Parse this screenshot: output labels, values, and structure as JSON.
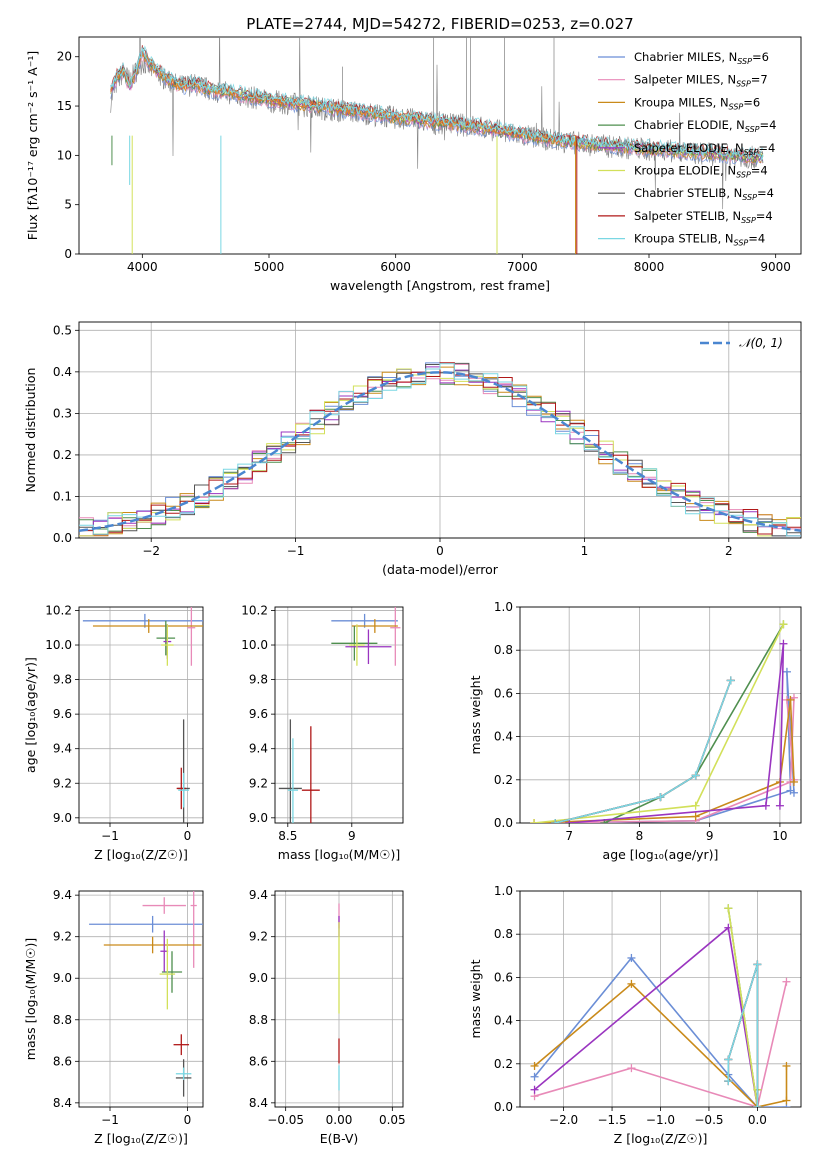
{
  "figure_title": "PLATE=2744, MJD=54272, FIBERID=0253, z=0.027",
  "colors": {
    "Chabrier MILES": "#6b8ed6",
    "Salpeter MILES": "#e88ab8",
    "Kroupa MILES": "#c98a1a",
    "Chabrier ELODIE": "#4f8f4f",
    "Salpeter ELODIE": "#9a35c0",
    "Kroupa ELODIE": "#d2e05a",
    "Chabrier STELIB": "#555555",
    "Salpeter STELIB": "#b01818",
    "Kroupa STELIB": "#7ad7e3",
    "data": "#808080",
    "model_orange": "#e07b2e",
    "normal": "#4a86d0",
    "grid": "#b0b0b0"
  },
  "chart_data": [
    {
      "id": "spectrum",
      "type": "line",
      "title": "PLATE=2744, MJD=54272, FIBERID=0253, z=0.027",
      "xlabel": "wavelength [Angstrom, rest frame]",
      "ylabel": "Flux [fλ10⁻¹⁷ erg cm⁻² s⁻¹ A⁻¹]",
      "xlim": [
        3500,
        9200
      ],
      "ylim": [
        0,
        22
      ],
      "xticks": [
        4000,
        5000,
        6000,
        7000,
        8000,
        9000
      ],
      "yticks": [
        0,
        5,
        10,
        15,
        20
      ],
      "grid": false,
      "legend_position": "top-right",
      "legend": [
        {
          "label": "Chabrier MILES, N_SSP=6",
          "main": "Chabrier MILES, N",
          "sub": "SSP",
          "tail": "=6"
        },
        {
          "label": "Salpeter MILES, N_SSP=7",
          "main": "Salpeter MILES, N",
          "sub": "SSP",
          "tail": "=7"
        },
        {
          "label": "Kroupa MILES, N_SSP=6",
          "main": "Kroupa MILES, N",
          "sub": "SSP",
          "tail": "=6"
        },
        {
          "label": "Chabrier ELODIE, N_SSP=4",
          "main": "Chabrier ELODIE, N",
          "sub": "SSP",
          "tail": "=4"
        },
        {
          "label": "Salpeter ELODIE, N_SSP=4",
          "main": "Salpeter ELODIE, N",
          "sub": "SSP",
          "tail": "=4"
        },
        {
          "label": "Kroupa ELODIE, N_SSP=4",
          "main": "Kroupa ELODIE, N",
          "sub": "SSP",
          "tail": "=4"
        },
        {
          "label": "Chabrier STELIB, N_SSP=4",
          "main": "Chabrier STELIB, N",
          "sub": "SSP",
          "tail": "=4"
        },
        {
          "label": "Salpeter STELIB, N_SSP=4",
          "main": "Salpeter STELIB, N",
          "sub": "SSP",
          "tail": "=4"
        },
        {
          "label": "Kroupa STELIB, N_SSP=4",
          "main": "Kroupa STELIB, N",
          "sub": "SSP",
          "tail": "=4"
        }
      ],
      "data_curve": {
        "x": [
          3750,
          3800,
          3850,
          3900,
          3950,
          4000,
          4050,
          4100,
          4150,
          4200,
          4300,
          4400,
          4500,
          4600,
          4700,
          4800,
          4900,
          5000,
          5200,
          5400,
          5600,
          5800,
          6000,
          6200,
          6400,
          6600,
          6800,
          7000,
          7200,
          7400,
          7600,
          7800,
          8000,
          8200,
          8400,
          8600,
          8800,
          8900
        ],
        "y": [
          15.5,
          17.5,
          18.5,
          17.5,
          18.5,
          19.5,
          19.0,
          18.5,
          18.0,
          17.5,
          17.0,
          17.2,
          16.8,
          16.5,
          16.3,
          16.0,
          15.8,
          15.5,
          15.2,
          14.8,
          14.5,
          14.2,
          13.8,
          13.5,
          13.2,
          13.0,
          12.5,
          12.0,
          11.6,
          11.3,
          11.0,
          10.8,
          10.6,
          10.4,
          10.2,
          10.0,
          9.8,
          9.7
        ]
      },
      "model_curve": {
        "x": [
          3750,
          3800,
          3850,
          3900,
          3950,
          4000,
          4050,
          4100,
          4200,
          4300,
          4400,
          4500,
          4600,
          4700,
          4800,
          5000,
          5200,
          5400,
          5600,
          5800,
          6000,
          6200,
          6400,
          6600,
          6800,
          7000,
          7200,
          7400,
          7600,
          7800,
          8000,
          8200,
          8400,
          8600,
          8800,
          8900
        ],
        "y": [
          16.5,
          18.0,
          18.5,
          17.0,
          18.5,
          20.5,
          19.5,
          18.8,
          17.8,
          17.0,
          17.3,
          16.8,
          16.5,
          16.4,
          16.1,
          15.7,
          15.3,
          15.0,
          14.6,
          14.3,
          13.9,
          13.6,
          13.3,
          13.0,
          12.6,
          12.1,
          11.7,
          11.4,
          11.1,
          10.9,
          10.7,
          10.5,
          10.3,
          10.1,
          9.9,
          9.8
        ]
      }
    },
    {
      "id": "residuals",
      "type": "histogram",
      "xlabel": "(data-model)/error",
      "ylabel": "Normed distribution",
      "xlim": [
        -2.5,
        2.5
      ],
      "ylim": [
        0,
        0.52
      ],
      "xticks": [
        -2,
        -1,
        0,
        1,
        2
      ],
      "yticks": [
        0.0,
        0.1,
        0.2,
        0.3,
        0.4,
        0.5
      ],
      "grid": true,
      "legend_position": "top-right",
      "legend": [
        {
          "label": "𝒩(0, 1)"
        }
      ],
      "bin_width": 0.1,
      "normal": {
        "mean": 0,
        "sigma": 1
      }
    },
    {
      "id": "age-metallicity",
      "type": "scatter",
      "xlabel": "Z [log₁₀(Z/Z☉)]",
      "ylabel": "age  [log₁₀(age/yr)]",
      "xlim": [
        -1.4,
        0.2
      ],
      "ylim": [
        8.97,
        10.22
      ],
      "xticks": [
        -1,
        0
      ],
      "yticks": [
        9.0,
        9.2,
        9.4,
        9.6,
        9.8,
        10.0,
        10.2
      ],
      "grid": true,
      "points": [
        {
          "series": "Chabrier MILES",
          "x": -0.55,
          "y": 10.14,
          "xerr": 0.8,
          "yerr": 0.04
        },
        {
          "series": "Salpeter MILES",
          "x": 0.05,
          "y": 10.1,
          "xerr": 0.05,
          "yerr": 0.22
        },
        {
          "series": "Kroupa MILES",
          "x": -0.5,
          "y": 10.11,
          "xerr": 0.72,
          "yerr": 0.04
        },
        {
          "series": "Chabrier ELODIE",
          "x": -0.28,
          "y": 10.04,
          "xerr": 0.12,
          "yerr": 0.1
        },
        {
          "series": "Salpeter ELODIE",
          "x": -0.26,
          "y": 10.02,
          "xerr": 0.05,
          "yerr": 0.1
        },
        {
          "series": "Kroupa ELODIE",
          "x": -0.26,
          "y": 10.0,
          "xerr": 0.08,
          "yerr": 0.12
        },
        {
          "series": "Chabrier STELIB",
          "x": -0.05,
          "y": 9.17,
          "xerr": 0.08,
          "yerr": 0.4
        },
        {
          "series": "Salpeter STELIB",
          "x": -0.08,
          "y": 9.17,
          "xerr": 0.06,
          "yerr": 0.12
        },
        {
          "series": "Kroupa STELIB",
          "x": -0.05,
          "y": 9.16,
          "xerr": 0.07,
          "yerr": 0.1
        }
      ]
    },
    {
      "id": "age-mass",
      "type": "scatter",
      "xlabel": "mass [log₁₀(M/M☉)]",
      "ylabel": "",
      "xlim": [
        8.4,
        9.4
      ],
      "ylim": [
        8.97,
        10.22
      ],
      "xticks": [
        8.5,
        9.0
      ],
      "yticks": [
        9.0,
        9.2,
        9.4,
        9.6,
        9.8,
        10.0,
        10.2
      ],
      "grid": true,
      "points": [
        {
          "series": "Chabrier MILES",
          "x": 9.1,
          "y": 10.14,
          "xerr": 0.26,
          "yerr": 0.04
        },
        {
          "series": "Salpeter MILES",
          "x": 9.34,
          "y": 10.1,
          "xerr": 0.04,
          "yerr": 0.22
        },
        {
          "series": "Kroupa MILES",
          "x": 9.18,
          "y": 10.11,
          "xerr": 0.18,
          "yerr": 0.04
        },
        {
          "series": "Chabrier ELODIE",
          "x": 9.02,
          "y": 10.01,
          "xerr": 0.18,
          "yerr": 0.1
        },
        {
          "series": "Salpeter ELODIE",
          "x": 9.13,
          "y": 9.99,
          "xerr": 0.18,
          "yerr": 0.1
        },
        {
          "series": "Kroupa ELODIE",
          "x": 9.04,
          "y": 10.0,
          "xerr": 0.06,
          "yerr": 0.12
        },
        {
          "series": "Chabrier STELIB",
          "x": 8.52,
          "y": 9.17,
          "xerr": 0.09,
          "yerr": 0.4
        },
        {
          "series": "Salpeter STELIB",
          "x": 8.68,
          "y": 9.16,
          "xerr": 0.07,
          "yerr": 0.37
        },
        {
          "series": "Kroupa STELIB",
          "x": 8.54,
          "y": 9.16,
          "xerr": 0.04,
          "yerr": 0.3
        }
      ]
    },
    {
      "id": "weight-age",
      "type": "line",
      "xlabel": "age  [log₁₀(age/yr)]",
      "ylabel": "mass weight",
      "xlim": [
        6.3,
        10.3
      ],
      "ylim": [
        0,
        1
      ],
      "xticks": [
        7,
        8,
        9,
        10
      ],
      "yticks": [
        0.0,
        0.2,
        0.4,
        0.6,
        0.8,
        1.0
      ],
      "grid": true,
      "series": [
        {
          "name": "Chabrier MILES",
          "x": [
            7.0,
            8.8,
            10.15,
            10.1,
            10.2
          ],
          "y": [
            0.0,
            0.01,
            0.15,
            0.7,
            0.14
          ]
        },
        {
          "name": "Salpeter MILES",
          "x": [
            6.5,
            8.8,
            10.15,
            10.2,
            10.1,
            10.2
          ],
          "y": [
            0.0,
            0.01,
            0.19,
            0.58,
            0.57,
            0.2
          ]
        },
        {
          "name": "Kroupa MILES",
          "x": [
            6.5,
            8.8,
            10.0,
            10.15,
            10.2
          ],
          "y": [
            0.0,
            0.03,
            0.19,
            0.57,
            0.19
          ]
        },
        {
          "name": "Chabrier ELODIE",
          "x": [
            7.5,
            8.3,
            8.8,
            10.05
          ],
          "y": [
            0.0,
            0.12,
            0.22,
            0.92
          ]
        },
        {
          "name": "Salpeter ELODIE",
          "x": [
            7.0,
            9.8,
            10.05,
            10.0
          ],
          "y": [
            0.0,
            0.08,
            0.83,
            0.08
          ]
        },
        {
          "name": "Kroupa ELODIE",
          "x": [
            6.5,
            8.8,
            10.05
          ],
          "y": [
            0.0,
            0.08,
            0.92
          ]
        },
        {
          "name": "Chabrier STELIB",
          "x": [
            6.8,
            8.3,
            8.8,
            9.3
          ],
          "y": [
            0.0,
            0.12,
            0.22,
            0.66
          ]
        },
        {
          "name": "Salpeter STELIB",
          "x": [
            6.8,
            8.3,
            8.8,
            9.3
          ],
          "y": [
            0.0,
            0.12,
            0.22,
            0.66
          ]
        },
        {
          "name": "Kroupa STELIB",
          "x": [
            6.8,
            8.3,
            8.8,
            9.3
          ],
          "y": [
            0.0,
            0.12,
            0.22,
            0.66
          ]
        }
      ]
    },
    {
      "id": "mass-metallicity",
      "type": "scatter",
      "xlabel": "Z [log₁₀(Z/Z☉)]",
      "ylabel": "mass [log₁₀(M/M☉)]",
      "xlim": [
        -1.4,
        0.2
      ],
      "ylim": [
        8.38,
        9.42
      ],
      "xticks": [
        -1,
        0
      ],
      "yticks": [
        8.4,
        8.6,
        8.8,
        9.0,
        9.2,
        9.4
      ],
      "grid": true,
      "points": [
        {
          "series": "Chabrier MILES",
          "x": -0.45,
          "y": 9.26,
          "xerr": 0.82,
          "yerr": 0.04
        },
        {
          "series": "Salpeter MILES",
          "x": -0.3,
          "y": 9.35,
          "xerr": 0.28,
          "yerr": 0.04
        },
        {
          "series": "Salpeter MILES",
          "x": 0.08,
          "y": 9.35,
          "xerr": 0.04,
          "yerr": 0.3
        },
        {
          "series": "Kroupa MILES",
          "x": -0.45,
          "y": 9.16,
          "xerr": 0.63,
          "yerr": 0.04
        },
        {
          "series": "Chabrier ELODIE",
          "x": -0.2,
          "y": 9.03,
          "xerr": 0.13,
          "yerr": 0.1
        },
        {
          "series": "Salpeter ELODIE",
          "x": -0.3,
          "y": 9.13,
          "xerr": 0.05,
          "yerr": 0.1
        },
        {
          "series": "Kroupa ELODIE",
          "x": -0.26,
          "y": 9.02,
          "xerr": 0.1,
          "yerr": 0.17
        },
        {
          "series": "Chabrier STELIB",
          "x": -0.05,
          "y": 8.52,
          "xerr": 0.1,
          "yerr": 0.09
        },
        {
          "series": "Salpeter STELIB",
          "x": -0.08,
          "y": 8.68,
          "xerr": 0.1,
          "yerr": 0.05
        },
        {
          "series": "Kroupa STELIB",
          "x": -0.05,
          "y": 8.54,
          "xerr": 0.1,
          "yerr": 0.03
        }
      ]
    },
    {
      "id": "mass-ebv",
      "type": "scatter",
      "xlabel": "E(B-V)",
      "ylabel": "",
      "xlim": [
        -0.06,
        0.06
      ],
      "ylim": [
        8.38,
        9.42
      ],
      "xticks": [
        -0.05,
        0.0,
        0.05
      ],
      "xticklabels": [
        "−0.05",
        "0.00",
        "0.05"
      ],
      "yticks": [
        8.4,
        8.6,
        8.8,
        9.0,
        9.2,
        9.4
      ],
      "grid": true,
      "points": [
        {
          "series": "Salpeter MILES",
          "x": 0.0,
          "y": 9.3,
          "xerr": 0.0,
          "yerr": 0.06
        },
        {
          "series": "Salpeter ELODIE",
          "x": 0.0,
          "y": 9.25,
          "xerr": 0.0,
          "yerr": 0.05
        },
        {
          "series": "Kroupa ELODIE",
          "x": 0.0,
          "y": 9.05,
          "xerr": 0.0,
          "yerr": 0.22
        },
        {
          "series": "Salpeter STELIB",
          "x": 0.0,
          "y": 8.65,
          "xerr": 0.0,
          "yerr": 0.06
        },
        {
          "series": "Kroupa STELIB",
          "x": 0.0,
          "y": 8.52,
          "xerr": 0.0,
          "yerr": 0.06
        }
      ]
    },
    {
      "id": "weight-metallicity",
      "type": "line",
      "xlabel": "Z [log₁₀(Z/Z☉)]",
      "ylabel": "mass weight",
      "xlim": [
        -2.45,
        0.45
      ],
      "ylim": [
        0,
        1
      ],
      "xticks": [
        -2.0,
        -1.5,
        -1.0,
        -0.5,
        0.0
      ],
      "xticklabels": [
        "−2.0",
        "−1.5",
        "−1.0",
        "−0.5",
        "0.0"
      ],
      "yticks": [
        0.0,
        0.2,
        0.4,
        0.6,
        0.8,
        1.0
      ],
      "grid": true,
      "series": [
        {
          "name": "Chabrier MILES",
          "x": [
            -2.3,
            -1.3,
            -0.3,
            0.0,
            0.3
          ],
          "y": [
            0.14,
            0.69,
            0.15,
            0.0,
            0.0
          ]
        },
        {
          "name": "Salpeter MILES",
          "x": [
            -2.3,
            -1.3,
            0.0,
            0.3
          ],
          "y": [
            0.05,
            0.18,
            0.0,
            0.58
          ]
        },
        {
          "name": "Kroupa MILES",
          "x": [
            -2.3,
            -1.3,
            0.0,
            0.3,
            0.3
          ],
          "y": [
            0.19,
            0.57,
            0.0,
            0.03,
            0.19
          ]
        },
        {
          "name": "Chabrier ELODIE",
          "x": [
            -0.3,
            0.0,
            0.0
          ],
          "y": [
            0.92,
            0.0,
            0.08
          ]
        },
        {
          "name": "Salpeter ELODIE",
          "x": [
            -2.3,
            -0.3,
            0.0
          ],
          "y": [
            0.08,
            0.83,
            0.0
          ]
        },
        {
          "name": "Kroupa ELODIE",
          "x": [
            -0.3,
            0.0,
            0.0
          ],
          "y": [
            0.92,
            0.0,
            0.08
          ]
        },
        {
          "name": "Chabrier STELIB",
          "x": [
            -0.3,
            -0.3,
            0.0,
            0.0
          ],
          "y": [
            0.12,
            0.22,
            0.66,
            0.0
          ]
        },
        {
          "name": "Salpeter STELIB",
          "x": [
            -0.3,
            -0.3,
            0.0,
            0.0
          ],
          "y": [
            0.12,
            0.22,
            0.66,
            0.0
          ]
        },
        {
          "name": "Kroupa STELIB",
          "x": [
            -0.3,
            -0.3,
            0.0,
            0.0
          ],
          "y": [
            0.12,
            0.22,
            0.66,
            0.0
          ]
        }
      ]
    }
  ]
}
